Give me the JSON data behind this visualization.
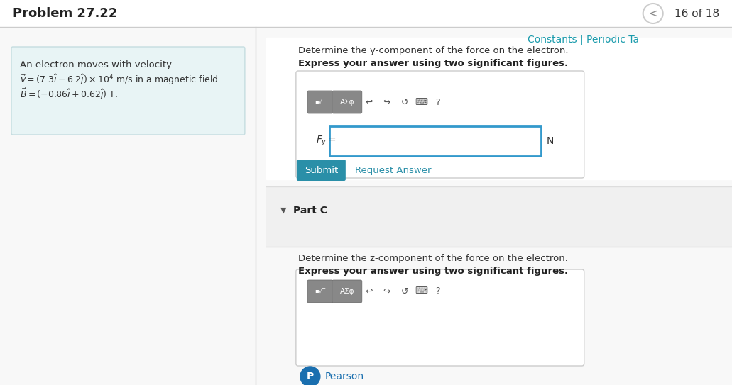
{
  "bg_color": "#ffffff",
  "header_text": "Problem 27.22",
  "header_font_size": 13,
  "page_indicator": "16 of 18",
  "constants_link": "Constants | Periodic Ta",
  "constants_color": "#1a9bac",
  "problem_box_bg": "#e8f4f5",
  "problem_box_border": "#c5dde0",
  "problem_line1": "An electron moves with velocity",
  "problem_line2": "$\\vec{v} = (7.3\\hat{i} - 6.2\\hat{j}) \\times 10^4$ m/s in a magnetic field",
  "problem_line3": "$\\vec{B} = (-0.86\\hat{i} + 0.62\\hat{j})$ T.",
  "divider_color": "#cccccc",
  "part_b_label1": "Determine the y-component of the force on the electron.",
  "part_b_label2": "Express your answer using two significant figures.",
  "input_label": "$F_y =$",
  "input_unit": "N",
  "submit_btn_color": "#2a8fa8",
  "submit_btn_text": "Submit",
  "request_link": "Request Answer",
  "request_link_color": "#2a8fa8",
  "part_c_bg": "#f5f5f5",
  "part_c_label": "Part C",
  "part_c_text1": "Determine the z-component of the force on the electron.",
  "part_c_text2": "Express your answer using two significant figures.",
  "pearson_text": "Pearson",
  "pearson_color": "#1a6faf",
  "toolbar_btn_color": "#888888",
  "input_border_color": "#3399cc",
  "input_box_bg": "#ffffff",
  "separator_color": "#dddddd",
  "arrow_btn_color": "#aaaaaa",
  "circle_btn_color": "#cccccc"
}
